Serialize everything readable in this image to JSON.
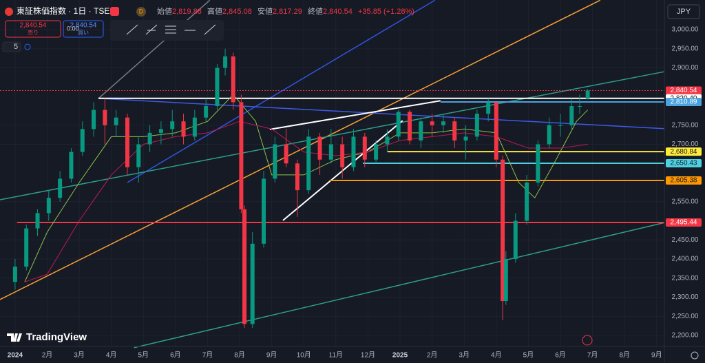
{
  "toolbar": {
    "symbol": "東証株価指数 · 1日 · TSE",
    "badge": "D",
    "ohlc": [
      {
        "label": "始値",
        "value": "2,819.88"
      },
      {
        "label": "高値",
        "value": "2,845.08"
      },
      {
        "label": "安値",
        "value": "2,817.29"
      },
      {
        "label": "終値",
        "value": "2,840.54"
      }
    ],
    "change": "+35.85 (+1.28%)",
    "sell": {
      "price": "2,840.54",
      "label": "売り"
    },
    "spread": "0.00",
    "buy": {
      "price": "2,840.54",
      "label": "買い"
    },
    "indicators": "5",
    "currency": "JPY",
    "brand": "TradingView"
  },
  "chart_data": {
    "type": "candlestick",
    "up_color": "#089981",
    "down_color": "#f23645",
    "grid": true,
    "xlim": [
      -0.47,
      20.24
    ],
    "ylim": [
      2182,
      3077.5
    ],
    "xticks": [
      {
        "value": 0,
        "label": "2024"
      },
      {
        "value": 1,
        "label": "2月"
      },
      {
        "value": 2,
        "label": "3月"
      },
      {
        "value": 3,
        "label": "4月"
      },
      {
        "value": 4,
        "label": "5月"
      },
      {
        "value": 5,
        "label": "6月"
      },
      {
        "value": 6,
        "label": "7月"
      },
      {
        "value": 7,
        "label": "8月"
      },
      {
        "value": 8,
        "label": "9月"
      },
      {
        "value": 9,
        "label": "10月"
      },
      {
        "value": 10,
        "label": "11月"
      },
      {
        "value": 11,
        "label": "12月"
      },
      {
        "value": 12,
        "label": "2025"
      },
      {
        "value": 13,
        "label": "2月"
      },
      {
        "value": 14,
        "label": "3月"
      },
      {
        "value": 15,
        "label": "4月"
      },
      {
        "value": 16,
        "label": "5月"
      },
      {
        "value": 17,
        "label": "6月"
      },
      {
        "value": 18,
        "label": "7月"
      },
      {
        "value": 19,
        "label": "8月"
      },
      {
        "value": 20,
        "label": "9月"
      }
    ],
    "yticks": [
      {
        "value": 3000,
        "label": "3,000.00"
      },
      {
        "value": 2950,
        "label": "2,950.00"
      },
      {
        "value": 2900,
        "label": "2,900.00"
      },
      {
        "value": 2750,
        "label": "2,750.00"
      },
      {
        "value": 2700,
        "label": "2,700.00"
      },
      {
        "value": 2550,
        "label": "2,550.00"
      },
      {
        "value": 2450,
        "label": "2,450.00"
      },
      {
        "value": 2400,
        "label": "2,400.00"
      },
      {
        "value": 2350,
        "label": "2,350.00"
      },
      {
        "value": 2300,
        "label": "2,300.00"
      },
      {
        "value": 2250,
        "label": "2,250.00"
      },
      {
        "value": 2200,
        "label": "2,200.00"
      }
    ],
    "candles": {
      "x": [
        0.0,
        0.35,
        0.7,
        1.05,
        1.4,
        1.75,
        2.1,
        2.45,
        2.8,
        3.15,
        3.5,
        3.85,
        4.2,
        4.55,
        4.9,
        5.25,
        5.6,
        5.95,
        6.3,
        6.55,
        6.8,
        7.05,
        7.15,
        7.4,
        7.75,
        8.1,
        8.45,
        8.8,
        9.15,
        9.5,
        9.85,
        10.2,
        10.55,
        10.9,
        11.25,
        11.6,
        11.95,
        12.3,
        12.65,
        13.0,
        13.35,
        13.7,
        14.05,
        14.4,
        14.75,
        15.0,
        15.2,
        15.3,
        15.6,
        15.95,
        16.3,
        16.65,
        17.0,
        17.35,
        17.6,
        17.85
      ],
      "open": [
        2340,
        2380,
        2480,
        2520,
        2560,
        2610,
        2680,
        2740,
        2790,
        2750,
        2770,
        2640,
        2700,
        2730,
        2740,
        2760,
        2720,
        2770,
        2800,
        2900,
        2930,
        2810,
        2530,
        2230,
        2440,
        2610,
        2700,
        2650,
        2580,
        2720,
        2660,
        2700,
        2640,
        2720,
        2660,
        2700,
        2720,
        2785,
        2710,
        2760,
        2750,
        2760,
        2710,
        2720,
        2780,
        2810,
        2660,
        2290,
        2400,
        2500,
        2600,
        2700,
        2750,
        2750,
        2800,
        2819.88
      ],
      "high": [
        2400,
        2490,
        2530,
        2580,
        2630,
        2690,
        2760,
        2810,
        2820,
        2790,
        2780,
        2720,
        2750,
        2760,
        2790,
        2780,
        2790,
        2820,
        2910,
        2950,
        2940,
        2830,
        2540,
        2470,
        2630,
        2720,
        2740,
        2660,
        2740,
        2730,
        2740,
        2720,
        2740,
        2730,
        2710,
        2740,
        2790,
        2790,
        2770,
        2780,
        2780,
        2770,
        2750,
        2790,
        2820,
        2810,
        2670,
        2420,
        2520,
        2620,
        2710,
        2770,
        2780,
        2820,
        2830,
        2845.08
      ],
      "low": [
        2320,
        2370,
        2460,
        2500,
        2550,
        2600,
        2670,
        2720,
        2700,
        2720,
        2620,
        2600,
        2680,
        2700,
        2720,
        2700,
        2710,
        2760,
        2790,
        2880,
        2790,
        2520,
        2220,
        2220,
        2430,
        2600,
        2640,
        2510,
        2570,
        2620,
        2650,
        2610,
        2630,
        2640,
        2650,
        2680,
        2710,
        2700,
        2690,
        2720,
        2730,
        2690,
        2660,
        2710,
        2760,
        2640,
        2240,
        2280,
        2390,
        2490,
        2590,
        2690,
        2720,
        2740,
        2780,
        2817.29
      ],
      "close": [
        2380,
        2480,
        2520,
        2560,
        2610,
        2680,
        2740,
        2790,
        2750,
        2770,
        2640,
        2700,
        2730,
        2740,
        2760,
        2720,
        2770,
        2800,
        2900,
        2930,
        2810,
        2530,
        2230,
        2440,
        2610,
        2700,
        2650,
        2580,
        2720,
        2660,
        2700,
        2640,
        2720,
        2660,
        2700,
        2720,
        2785,
        2710,
        2760,
        2750,
        2760,
        2710,
        2720,
        2780,
        2810,
        2660,
        2290,
        2400,
        2500,
        2600,
        2700,
        2750,
        2750,
        2800,
        2800,
        2840.54
      ]
    },
    "series": [
      {
        "color": "#8bc34a",
        "x": [
          0.3,
          1.0,
          2.0,
          3.0,
          4.0,
          5.0,
          6.0,
          6.8,
          7.5,
          8.0,
          9.0,
          10.0,
          11.0,
          12.0,
          13.0,
          14.0,
          15.0,
          15.7,
          16.2,
          16.8,
          17.5,
          17.85
        ],
        "values": [
          2340,
          2470,
          2600,
          2720,
          2720,
          2730,
          2760,
          2830,
          2760,
          2620,
          2620,
          2660,
          2680,
          2730,
          2730,
          2740,
          2730,
          2600,
          2560,
          2650,
          2760,
          2790
        ]
      },
      {
        "color": "#c2185b",
        "x": [
          0.3,
          1.0,
          2.0,
          3.0,
          4.0,
          5.0,
          6.0,
          7.0,
          8.0,
          9.0,
          10.0,
          11.0,
          12.0,
          13.0,
          14.0,
          15.0,
          16.0,
          17.0,
          17.85
        ],
        "values": [
          2340,
          2360,
          2500,
          2620,
          2700,
          2720,
          2730,
          2760,
          2740,
          2680,
          2670,
          2680,
          2710,
          2720,
          2730,
          2720,
          2690,
          2690,
          2700
        ]
      }
    ],
    "drawings": [
      {
        "color": "#787b86",
        "points": [
          [
            2.6,
            2820
          ],
          [
            6.07,
            3077
          ]
        ]
      },
      {
        "color": "#2f55e0",
        "points": [
          [
            3.5,
            2600
          ],
          [
            13.09,
            3077
          ]
        ]
      },
      {
        "color": "#f7a035",
        "points": [
          [
            -0.47,
            2294
          ],
          [
            18.24,
            3077
          ]
        ]
      },
      {
        "color": "#2e9d8a",
        "points": [
          [
            -0.47,
            2555
          ],
          [
            20.24,
            2890
          ]
        ]
      },
      {
        "color": "#2e9d8a",
        "points": [
          [
            3.71,
            2168
          ],
          [
            20.24,
            2495
          ]
        ]
      },
      {
        "color": "#3d5ae8",
        "points": [
          [
            2.6,
            2820
          ],
          [
            20.24,
            2741
          ]
        ]
      },
      {
        "color": "#ffffff",
        "points": [
          [
            7.94,
            2739
          ],
          [
            13.26,
            2814
          ]
        ]
      },
      {
        "color": "#ffffff",
        "points": [
          [
            8.35,
            2501
          ],
          [
            12.08,
            2762
          ]
        ]
      }
    ],
    "levels": [
      {
        "value": 2840.54,
        "label": "2,840.54",
        "color": "#f23645",
        "from": -0.47,
        "dotted": true
      },
      {
        "value": 2820.4,
        "label": "2,820.40",
        "color": "#ffffff",
        "from": 2.6
      },
      {
        "value": 2810.89,
        "label": "2,810.89",
        "color": "#4aa3df",
        "from": 13.26
      },
      {
        "value": 2680.84,
        "label": "2,680.84",
        "color": "#ffeb3b",
        "from": 11.61
      },
      {
        "value": 2650.43,
        "label": "2,650.43",
        "color": "#4dd0e1",
        "from": 10.84
      },
      {
        "value": 2605.38,
        "label": "2,605.38",
        "color": "#ff9800",
        "from": 9.8
      },
      {
        "value": 2495.44,
        "label": "2,495.44",
        "color": "#f23645",
        "from": 0.06
      }
    ]
  }
}
